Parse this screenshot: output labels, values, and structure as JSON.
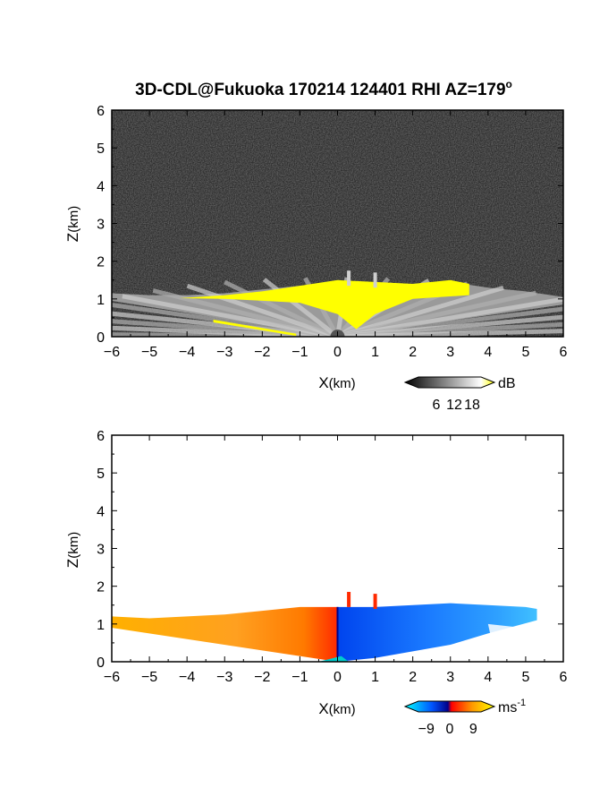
{
  "figure": {
    "title_main": "3D-CDL@Fukuoka 170214 124401 RHI AZ=179",
    "title_sup": "o"
  },
  "chart_data": [
    {
      "type": "heatmap",
      "panel": "top",
      "quantity": "backscatter intensity",
      "xlabel_main": "X",
      "xlabel_unit": "(km)",
      "ylabel_main": "Z",
      "ylabel_unit": "(km)",
      "xlim": [
        -6,
        6
      ],
      "ylim": [
        0,
        6
      ],
      "xticks": [
        -6,
        -5,
        -4,
        -3,
        -2,
        -1,
        0,
        1,
        2,
        3,
        4,
        5,
        6
      ],
      "yticks": [
        0,
        1,
        2,
        3,
        4,
        5,
        6
      ],
      "background": "noise (dark gray)",
      "echo_top_km": [
        {
          "x": -6.0,
          "z": 1.15
        },
        {
          "x": -5.0,
          "z": 1.1
        },
        {
          "x": -4.0,
          "z": 1.1
        },
        {
          "x": -3.0,
          "z": 1.15
        },
        {
          "x": -2.0,
          "z": 1.25
        },
        {
          "x": -1.0,
          "z": 1.35
        },
        {
          "x": 0.0,
          "z": 1.45
        },
        {
          "x": 1.0,
          "z": 1.4
        },
        {
          "x": 2.0,
          "z": 1.4
        },
        {
          "x": 3.0,
          "z": 1.45
        },
        {
          "x": 4.0,
          "z": 1.3
        },
        {
          "x": 5.0,
          "z": 1.2
        },
        {
          "x": 6.0,
          "z": 1.05
        }
      ],
      "spikes_km": [
        {
          "x": 0.3,
          "z": 1.75
        },
        {
          "x": 1.0,
          "z": 1.7
        }
      ],
      "colorbar": {
        "ticks": [
          "6",
          "12",
          "18"
        ],
        "unit": "dB",
        "range": [
          0,
          21
        ],
        "colors": [
          "#000000",
          "#ffffff",
          "#ffff00"
        ]
      }
    },
    {
      "type": "heatmap",
      "panel": "bottom",
      "quantity": "radial velocity",
      "xlabel_main": "X",
      "xlabel_unit": "(km)",
      "ylabel_main": "Z",
      "ylabel_unit": "(km)",
      "xlim": [
        -6,
        6
      ],
      "ylim": [
        0,
        6
      ],
      "xticks": [
        -6,
        -5,
        -4,
        -3,
        -2,
        -1,
        0,
        1,
        2,
        3,
        4,
        5,
        6
      ],
      "yticks": [
        0,
        1,
        2,
        3,
        4,
        5,
        6
      ],
      "echo_top_km": [
        {
          "x": -6.0,
          "z": 1.2
        },
        {
          "x": -5.0,
          "z": 1.15
        },
        {
          "x": -4.0,
          "z": 1.2
        },
        {
          "x": -3.0,
          "z": 1.25
        },
        {
          "x": -2.0,
          "z": 1.35
        },
        {
          "x": -1.0,
          "z": 1.45
        },
        {
          "x": 0.0,
          "z": 1.45
        },
        {
          "x": 1.0,
          "z": 1.45
        },
        {
          "x": 2.0,
          "z": 1.5
        },
        {
          "x": 3.0,
          "z": 1.55
        },
        {
          "x": 4.0,
          "z": 1.5
        },
        {
          "x": 5.0,
          "z": 1.45
        },
        {
          "x": 5.3,
          "z": 1.4
        }
      ],
      "spikes_km": [
        {
          "x": 0.3,
          "z": 1.85
        },
        {
          "x": 1.0,
          "z": 1.8
        }
      ],
      "regions": [
        {
          "x_range": [
            -6,
            0
          ],
          "sign": "positive (away)",
          "color": "#ff9900"
        },
        {
          "x_range": [
            0,
            5.3
          ],
          "sign": "negative (toward)",
          "color": "#1a66ff"
        }
      ],
      "colorbar": {
        "ticks": [
          "-9",
          "0",
          "9"
        ],
        "unit": "ms",
        "unit_sup": "-1",
        "range": [
          -12,
          12
        ],
        "colors": [
          "#00ffff",
          "#0055ff",
          "#000088",
          "#ff0000",
          "#ff9900",
          "#ffff00"
        ]
      }
    }
  ]
}
